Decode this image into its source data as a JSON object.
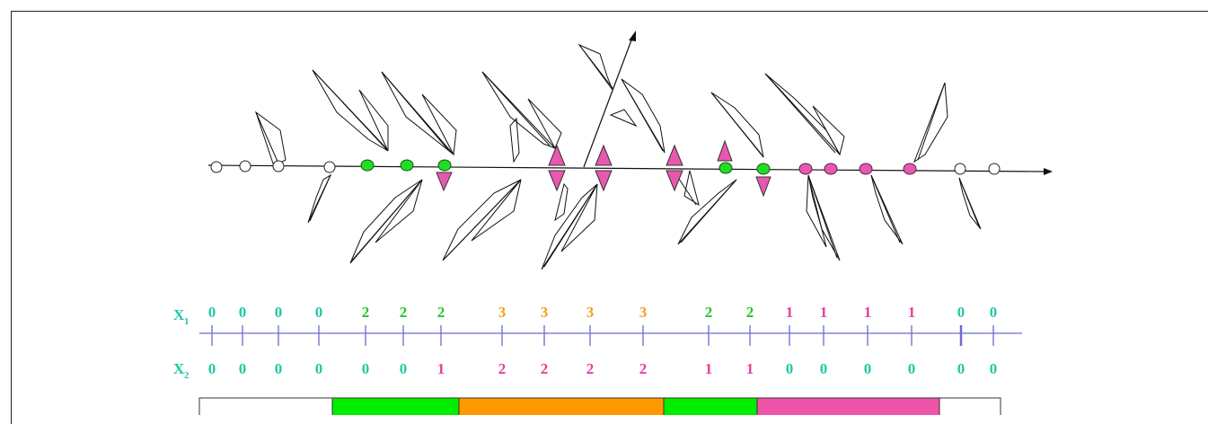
{
  "rows": {
    "x1": {
      "label": "X",
      "subscript": "1",
      "values": [
        "0",
        "0",
        "0",
        "0",
        "2",
        "2",
        "2",
        "3",
        "3",
        "3",
        "3",
        "2",
        "2",
        "1",
        "1",
        "1",
        "1",
        "0",
        "0"
      ]
    },
    "x2": {
      "label": "X",
      "subscript": "2",
      "values": [
        "0",
        "0",
        "0",
        "0",
        "0",
        "0",
        "1",
        "2",
        "2",
        "2",
        "2",
        "1",
        "1",
        "0",
        "0",
        "0",
        "0",
        "0",
        "0"
      ]
    }
  },
  "colors": {
    "value_0": "#20c9a6",
    "value_1": "#e83e9c",
    "value_2_x1": "#22c820",
    "value_2_x2": "#e83e9c",
    "value_3": "#f0a020",
    "axis_label": "#20c9a6",
    "line": "#6a6ad0",
    "node_green": "#22dd22",
    "node_pink": "#e858b0",
    "band_white": "#ffffff",
    "band_green": "#00ee00",
    "band_orange": "#ff9900",
    "band_pink": "#ee55aa"
  },
  "bands": [
    "white",
    "green",
    "orange",
    "green",
    "pink",
    "white"
  ],
  "diagram": {
    "node_states": [
      "empty",
      "empty",
      "empty",
      "empty",
      "green",
      "green",
      "green-down",
      "up-down",
      "up-down",
      "up-down",
      "up-down",
      "up-green",
      "green-down",
      "pink",
      "pink",
      "pink",
      "pink",
      "empty",
      "empty"
    ]
  }
}
